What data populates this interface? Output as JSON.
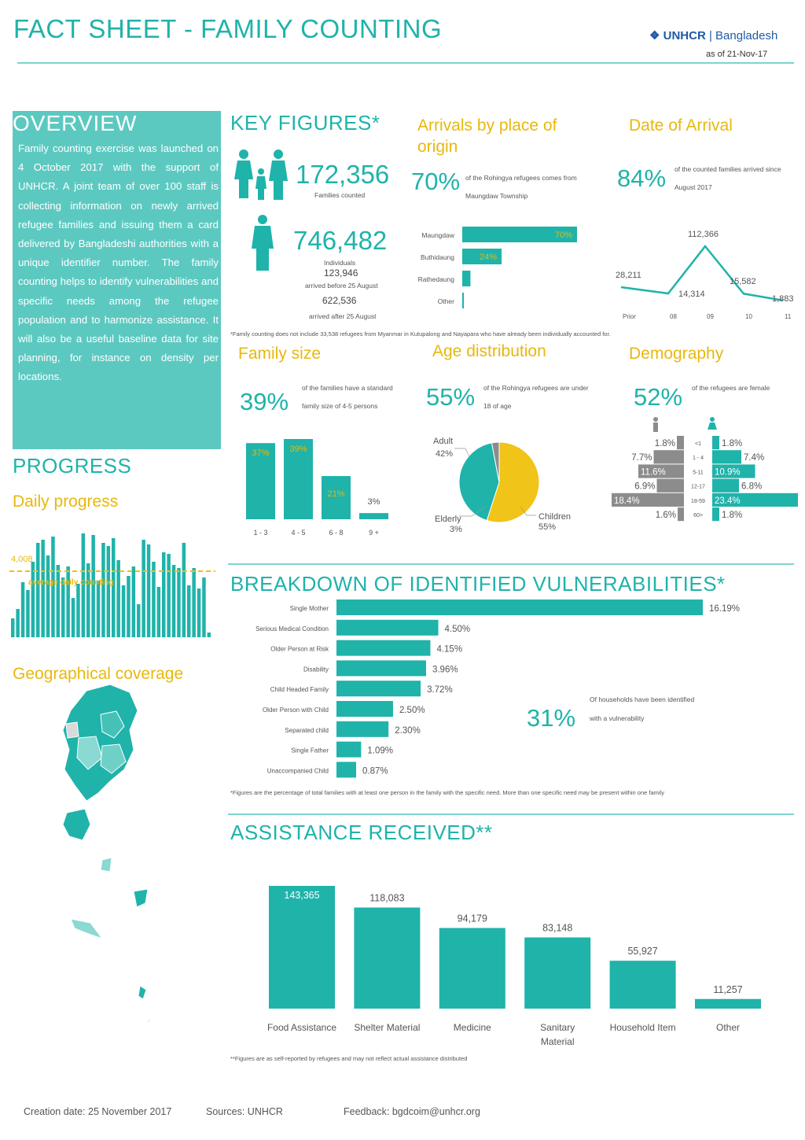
{
  "header": {
    "title": "FACT SHEET - FAMILY COUNTING",
    "logo_text": "UNHCR",
    "logo_country": "Bangladesh",
    "as_of": "as of 21-Nov-17"
  },
  "overview": {
    "title": "OVERVIEW",
    "text": "Family counting exercise was launched on 4 October 2017 with the support of UNHCR. A joint team of over 100 staff is collecting information on newly arrived refugee families and issuing them a card delivered by Bangladeshi authorities with a unique identifier number. The family counting helps to identify vulnerabilities and specific needs among the refugee population and to harmonize assistance. It will also be a useful baseline data for site planning, for instance on density per locations."
  },
  "progress": {
    "title": "PROGRESS",
    "daily_title": "Daily progress",
    "average_value": "4,008",
    "average_label": "average daily counting"
  },
  "geo": {
    "title": "Geographical coverage"
  },
  "key_figures": {
    "title": "KEY FIGURES*",
    "families_value": "172,356",
    "families_label": "Families counted",
    "individuals_value": "746,482",
    "individuals_label": "Individuals",
    "before_value": "123,946",
    "before_label": "arrived before 25 August",
    "after_value": "622,536",
    "after_label": "arrived after 25 August",
    "footnote": "*Family counting does not include 33,538 refugees from Myanmar in Kutupalong and Nayapara who have already been individually accounted for."
  },
  "arrivals": {
    "title": "Arrivals by place of origin",
    "percent": "70%",
    "text": "of the Rohingya refugees comes from Maungdaw Township"
  },
  "date_arrival": {
    "title": "Date of Arrival",
    "percent": "84%",
    "text": "of the counted families arrived since August 2017"
  },
  "family_size": {
    "title": "Family size",
    "percent": "39%",
    "text": "of the families have a standard family size of 4-5 persons"
  },
  "age": {
    "title": "Age distribution",
    "percent": "55%",
    "text": "of the Rohingya refugees are under 18 of age",
    "adult_label": "Adult",
    "adult_value": "42%",
    "elderly_label": "Elderly",
    "elderly_value": "3%",
    "children_label": "Children",
    "children_value": "55%"
  },
  "demography": {
    "title": "Demography",
    "percent": "52%",
    "text": "of the refugees are female"
  },
  "vulnerabilities": {
    "title": "BREAKDOWN OF IDENTIFIED VULNERABILITIES*",
    "percent": "31%",
    "text": "Of households have been identified with a vulnerability",
    "footnote": "*Figures are the percentage of total families with at least one person in the family with the specific need. More than one specific need may be present within one family"
  },
  "assistance": {
    "title": "ASSISTANCE RECEIVED**",
    "footnote": "**Figures are as self-reported by refugees and may not reflect actual assistance distributed"
  },
  "footer": {
    "creation": "Creation date: 25 November 2017",
    "sources": "Sources: UNHCR",
    "feedback": "Feedback: bgdcoim@unhcr.org"
  },
  "colors": {
    "teal": "#1fb3aa",
    "yellow": "#e8b80c",
    "grey": "#8c8c8c",
    "light_teal": "#5cc9c1"
  },
  "chart_data": [
    {
      "id": "origin",
      "type": "bar",
      "orientation": "horizontal",
      "categories": [
        "Maungdaw",
        "Buthidaung",
        "Rathedaung",
        "Other"
      ],
      "values": [
        70,
        24,
        5,
        1
      ],
      "value_labels": [
        "70%",
        "24%",
        "",
        ""
      ]
    },
    {
      "id": "arrival_date",
      "type": "line",
      "categories": [
        "Prior",
        "08",
        "09",
        "10",
        "11"
      ],
      "values": [
        28211,
        14314,
        112366,
        15582,
        1883
      ],
      "value_labels": [
        "28,211",
        "14,314",
        "112,366",
        "15,582",
        "1,883"
      ]
    },
    {
      "id": "family_size",
      "type": "bar",
      "categories": [
        "1 - 3",
        "4 - 5",
        "6 - 8",
        "9 +"
      ],
      "values": [
        37,
        39,
        21,
        3
      ],
      "value_labels": [
        "37%",
        "39%",
        "21%",
        "3%"
      ]
    },
    {
      "id": "age",
      "type": "pie",
      "categories": [
        "Children",
        "Adult",
        "Elderly"
      ],
      "values": [
        55,
        42,
        3
      ]
    },
    {
      "id": "demography",
      "type": "bar",
      "orientation": "horizontal",
      "categories": [
        "<1",
        "1 - 4",
        "5-11",
        "12-17",
        "18-59",
        "60>"
      ],
      "series": [
        {
          "name": "male",
          "values": [
            1.8,
            7.7,
            11.6,
            6.9,
            18.4,
            1.6
          ],
          "labels": [
            "1.8%",
            "7.7%",
            "11.6%",
            "6.9%",
            "18.4%",
            "1.6%"
          ]
        },
        {
          "name": "female",
          "values": [
            1.8,
            7.4,
            10.9,
            6.8,
            23.4,
            1.8
          ],
          "labels": [
            "1.8%",
            "7.4%",
            "10.9%",
            "6.8%",
            "23.4%",
            "1.8%"
          ]
        }
      ]
    },
    {
      "id": "daily_progress",
      "type": "bar",
      "average": 4008,
      "values": [
        1200,
        1800,
        3500,
        3000,
        4800,
        6000,
        6200,
        5200,
        6400,
        4600,
        3800,
        4500,
        2500,
        3400,
        6600,
        4700,
        6500,
        3600,
        6000,
        5800,
        6300,
        4900,
        3300,
        3900,
        4500,
        2100,
        6200,
        5900,
        4800,
        3200,
        5400,
        5300,
        4600,
        4400,
        6000,
        3300,
        4400,
        3100,
        3800,
        300
      ]
    },
    {
      "id": "vulnerabilities",
      "type": "bar",
      "orientation": "horizontal",
      "categories": [
        "Single Mother",
        "Serious Medical Condition",
        "Older Person at Risk",
        "Disability",
        "Child Headed Family",
        "Older Person with Child",
        "Separated child",
        "Single Father",
        "Unaccompanied Child"
      ],
      "values": [
        16.19,
        4.5,
        4.15,
        3.96,
        3.72,
        2.5,
        2.3,
        1.09,
        0.87
      ],
      "value_labels": [
        "16.19%",
        "4.50%",
        "4.15%",
        "3.96%",
        "3.72%",
        "2.50%",
        "2.30%",
        "1.09%",
        "0.87%"
      ]
    },
    {
      "id": "assistance",
      "type": "bar",
      "categories": [
        "Food Assistance",
        "Shelter Material",
        "Medicine",
        "Sanitary Material",
        "Household Item",
        "Other"
      ],
      "values": [
        143365,
        118083,
        94179,
        83148,
        55927,
        11257
      ],
      "value_labels": [
        "143,365",
        "118,083",
        "94,179",
        "83,148",
        "55,927",
        "11,257"
      ]
    }
  ]
}
